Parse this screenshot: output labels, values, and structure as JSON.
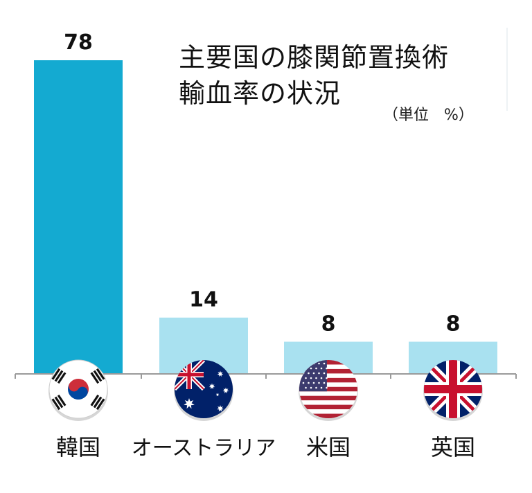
{
  "chart_data": {
    "type": "bar",
    "title_lines": [
      "主要国の膝関節置換術",
      "輸血率の状況"
    ],
    "unit_label": "（単位　%）",
    "categories": [
      "韓国",
      "オーストラリア",
      "米国",
      "英国"
    ],
    "values": [
      78,
      14,
      8,
      8
    ],
    "value_labels": [
      "78",
      "14",
      "8",
      "8"
    ],
    "ylim": [
      0,
      78
    ],
    "legend": "none",
    "grid": false,
    "flags": [
      "south-korea-flag-icon",
      "australia-flag-icon",
      "usa-flag-icon",
      "uk-flag-icon"
    ],
    "colors": {
      "highlight_bar": "#14aad1",
      "other_bar": "#a9e1f0",
      "axis": "#9a9a9a",
      "text": "#111111"
    }
  }
}
